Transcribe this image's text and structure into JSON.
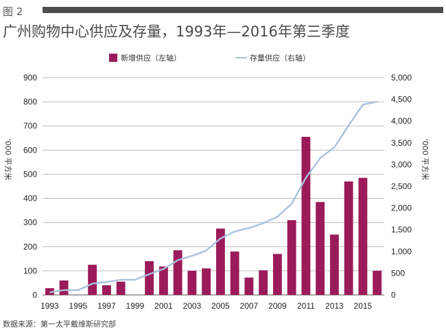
{
  "figure_label": "图 2",
  "source": "数据来源：第一太平戴维斯研究部",
  "chart_data": {
    "type": "bar",
    "title": "广州购物中心供应及存量，1993年—2016年第三季度",
    "x": [
      1993,
      1994,
      1995,
      1996,
      1997,
      1998,
      1999,
      2000,
      2001,
      2002,
      2003,
      2004,
      2005,
      2006,
      2007,
      2008,
      2009,
      2010,
      2011,
      2012,
      2013,
      2014,
      2015,
      2016
    ],
    "x_tick_labels": [
      "1993",
      "1995",
      "1997",
      "1999",
      "2001",
      "2003",
      "2005",
      "2007",
      "2009",
      "2011",
      "2013",
      "2015"
    ],
    "series": [
      {
        "name": "新增供应（左轴）",
        "type": "bar",
        "axis": "left",
        "color": "#9b1b5a",
        "values": [
          28,
          60,
          0,
          125,
          40,
          55,
          0,
          140,
          118,
          185,
          100,
          110,
          275,
          180,
          72,
          102,
          170,
          310,
          655,
          385,
          250,
          470,
          485,
          100
        ]
      },
      {
        "name": "存量供应（右轴）",
        "type": "line",
        "axis": "right",
        "color": "#a9c1dc",
        "values": [
          60,
          110,
          110,
          260,
          300,
          350,
          350,
          480,
          600,
          800,
          900,
          1020,
          1300,
          1460,
          1540,
          1650,
          1800,
          2100,
          2700,
          3150,
          3400,
          3900,
          4380,
          4450
        ]
      }
    ],
    "ylim_left": [
      0,
      900
    ],
    "ylim_right": [
      0,
      5000
    ],
    "yticks_left": [
      "0",
      "100",
      "200",
      "300",
      "400",
      "500",
      "600",
      "700",
      "800",
      "900"
    ],
    "yticks_right": [
      "0",
      "500",
      "1,000",
      "1,500",
      "2,000",
      "2,500",
      "3,000",
      "3,500",
      "4,000",
      "4,500",
      "5,000"
    ],
    "ylabel_left": "'000 平方米",
    "ylabel_right": "'000 平方米",
    "legend_position": "top-center",
    "grid": "horizontal"
  }
}
